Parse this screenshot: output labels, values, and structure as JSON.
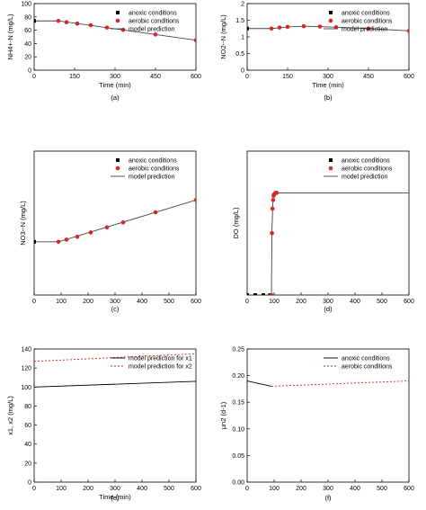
{
  "chart_data": [
    {
      "type": "scatter",
      "panel_label": "(a)",
      "xlabel": "Time (min)",
      "ylabel": "NH4+-N (mg/L)",
      "xlim": [
        0,
        600
      ],
      "ylim": [
        0,
        100
      ],
      "xticks": [
        "0",
        "150",
        "300",
        "450",
        "600"
      ],
      "yticks": [
        "0",
        "20",
        "40",
        "60",
        "80",
        "100"
      ],
      "legend_position": "top-right",
      "series": [
        {
          "name": "anoxic conditions",
          "marker": "square",
          "color": "#000000",
          "x": [
            0
          ],
          "y": [
            74
          ]
        },
        {
          "name": "aerobic conditions",
          "marker": "circle",
          "color": "#d62728",
          "x": [
            90,
            120,
            160,
            210,
            270,
            330,
            450,
            600
          ],
          "y": [
            74,
            72,
            70,
            67.5,
            64,
            60.5,
            53.5,
            45
          ]
        },
        {
          "name": "model prediction",
          "marker": "line",
          "color": "#444444",
          "x": [
            0,
            90,
            600
          ],
          "y": [
            74,
            74,
            45
          ]
        }
      ]
    },
    {
      "type": "scatter",
      "panel_label": "(b)",
      "xlabel": "Time (min)",
      "ylabel": "NO2--N (mg/L)",
      "xlim": [
        0,
        600
      ],
      "ylim": [
        0,
        2
      ],
      "xticks": [
        "0",
        "150",
        "300",
        "450",
        "600"
      ],
      "yticks": [
        "0",
        "0.5",
        "1",
        "1.5",
        "2"
      ],
      "legend_position": "top-right",
      "series": [
        {
          "name": "anoxic conditions",
          "marker": "square",
          "color": "#000000",
          "x": [
            0
          ],
          "y": [
            1.25
          ]
        },
        {
          "name": "aerobic conditions",
          "marker": "circle",
          "color": "#d62728",
          "x": [
            90,
            120,
            150,
            210,
            270,
            330,
            450,
            600
          ],
          "y": [
            1.25,
            1.28,
            1.3,
            1.32,
            1.31,
            1.29,
            1.25,
            1.18
          ]
        },
        {
          "name": "model prediction",
          "marker": "line",
          "color": "#444444",
          "x": [
            0,
            90,
            150,
            210,
            270,
            330,
            450,
            600
          ],
          "y": [
            1.25,
            1.25,
            1.3,
            1.32,
            1.31,
            1.29,
            1.25,
            1.18
          ]
        }
      ]
    },
    {
      "type": "scatter",
      "panel_label": "(c)",
      "xlabel": "",
      "ylabel": "NO3--N (mg/L)",
      "xlim": [
        0,
        600
      ],
      "ylim": [
        0,
        100
      ],
      "xticks": [
        "0",
        "100",
        "200",
        "300",
        "400",
        "500",
        "600"
      ],
      "yticks": [],
      "legend_position": "top-right",
      "series": [
        {
          "name": "anoxic conditions",
          "marker": "square",
          "color": "#000000",
          "x": [
            0
          ],
          "y": [
            37
          ]
        },
        {
          "name": "aerobic conditions",
          "marker": "circle",
          "color": "#d62728",
          "x": [
            90,
            120,
            160,
            210,
            270,
            330,
            450,
            600
          ],
          "y": [
            37,
            38.5,
            40.5,
            43.5,
            47,
            50.5,
            57.5,
            66
          ]
        },
        {
          "name": "model prediction",
          "marker": "line",
          "color": "#444444",
          "x": [
            0,
            90,
            600
          ],
          "y": [
            37,
            37,
            66
          ]
        }
      ]
    },
    {
      "type": "scatter",
      "panel_label": "(d)",
      "xlabel": "",
      "ylabel": "DO (mg/L)",
      "xlim": [
        0,
        600
      ],
      "ylim": [
        0,
        10
      ],
      "xticks": [
        "0",
        "100",
        "200",
        "300",
        "400",
        "500",
        "600"
      ],
      "yticks": [],
      "legend_position": "top-right",
      "series": [
        {
          "name": "anoxic conditions",
          "marker": "square",
          "color": "#000000",
          "x": [
            0,
            30,
            60,
            85
          ],
          "y": [
            0,
            0,
            0,
            0
          ]
        },
        {
          "name": "aerobic conditions",
          "marker": "circle",
          "color": "#d62728",
          "x": [
            90,
            92,
            94,
            96,
            98,
            100,
            105,
            110
          ],
          "y": [
            0,
            4.3,
            6.0,
            6.6,
            6.9,
            7.0,
            7.1,
            7.1
          ]
        },
        {
          "name": "model prediction",
          "marker": "line",
          "color": "#444444",
          "x": [
            0,
            90,
            92,
            95,
            98,
            102,
            110,
            600
          ],
          "y": [
            0,
            0,
            4.5,
            6.3,
            6.9,
            7.05,
            7.1,
            7.1
          ]
        }
      ]
    },
    {
      "type": "line",
      "panel_label": "(e)",
      "xlabel": "Time (min)",
      "ylabel": "x1, x2 (mg/L)",
      "xlim": [
        0,
        600
      ],
      "ylim": [
        0,
        140
      ],
      "xticks": [
        "0",
        "100",
        "200",
        "300",
        "400",
        "500",
        "600"
      ],
      "yticks": [
        "0",
        "20",
        "40",
        "60",
        "80",
        "100",
        "120",
        "140"
      ],
      "legend_position": "top-right",
      "series": [
        {
          "name": "model prediction for x1",
          "style": "solid",
          "color": "#000000",
          "x": [
            0,
            600
          ],
          "y": [
            100,
            106
          ]
        },
        {
          "name": "model prediction for x2",
          "style": "dashed",
          "color": "#d62728",
          "x": [
            0,
            600
          ],
          "y": [
            127,
            135
          ]
        }
      ]
    },
    {
      "type": "line",
      "panel_label": "(f)",
      "xlabel": "",
      "ylabel": "μn2 (d-1)",
      "xlim": [
        0,
        600
      ],
      "ylim": [
        0,
        0.25
      ],
      "xticks": [
        "0",
        "100",
        "200",
        "300",
        "400",
        "500",
        "600"
      ],
      "yticks": [
        "0.00",
        "0.05",
        "0.10",
        "0.15",
        "0.20",
        "0.25"
      ],
      "legend_position": "top-right",
      "series": [
        {
          "name": "anoxic conditions",
          "style": "solid",
          "color": "#000000",
          "x": [
            0,
            90
          ],
          "y": [
            0.19,
            0.18
          ]
        },
        {
          "name": "aerobic conditions",
          "style": "dashed",
          "color": "#d62728",
          "x": [
            90,
            600
          ],
          "y": [
            0.18,
            0.19
          ]
        }
      ]
    }
  ]
}
